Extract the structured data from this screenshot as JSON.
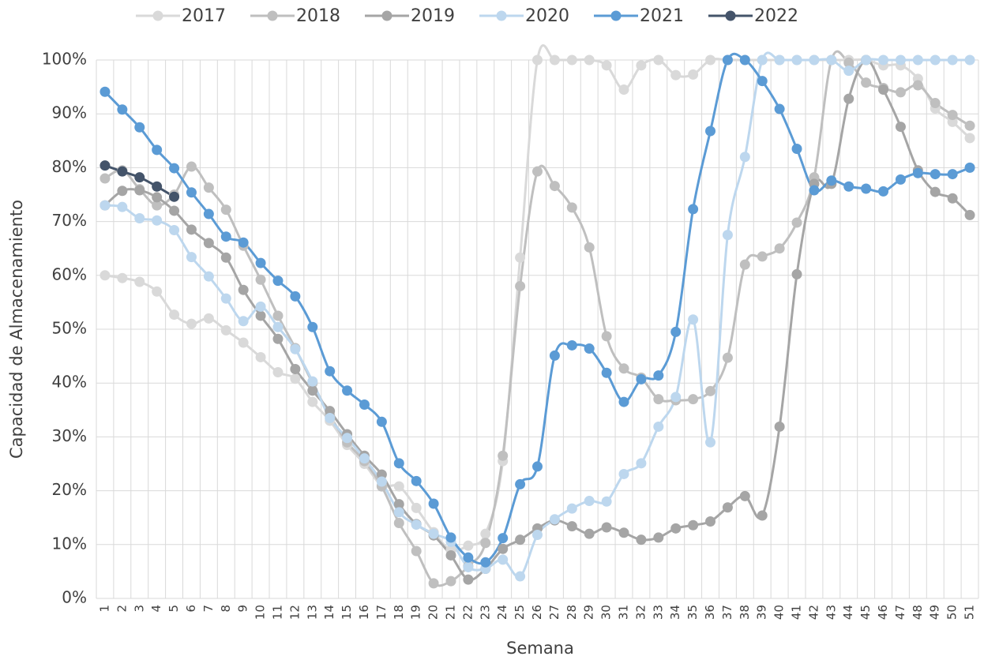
{
  "chart_data": {
    "type": "line",
    "x_label": "Semana",
    "y_label": "Capacidad de Almacenamiento",
    "categories": [
      "1",
      "2",
      "3",
      "4",
      "5",
      "6",
      "7",
      "8",
      "9",
      "10",
      "11",
      "12",
      "13",
      "14",
      "15",
      "16",
      "17",
      "18",
      "19",
      "20",
      "21",
      "22",
      "23",
      "24",
      "25",
      "26",
      "27",
      "28",
      "29",
      "30",
      "31",
      "32",
      "33",
      "34",
      "35",
      "36",
      "37",
      "38",
      "39",
      "40",
      "41",
      "42",
      "43",
      "44",
      "45",
      "46",
      "47",
      "48",
      "49",
      "50",
      "51"
    ],
    "ylim": [
      0,
      100
    ],
    "yticks": [
      {
        "value": 0,
        "label": "0%"
      },
      {
        "value": 10,
        "label": "10%"
      },
      {
        "value": 20,
        "label": "20%"
      },
      {
        "value": 30,
        "label": "30%"
      },
      {
        "value": 40,
        "label": "40%"
      },
      {
        "value": 50,
        "label": "50%"
      },
      {
        "value": 60,
        "label": "60%"
      },
      {
        "value": 70,
        "label": "70%"
      },
      {
        "value": 80,
        "label": "80%"
      },
      {
        "value": 90,
        "label": "90%"
      },
      {
        "value": 100,
        "label": "100%"
      }
    ],
    "grid": true,
    "legend": "top",
    "series": [
      {
        "name": "2017",
        "color": "#d9d9d9",
        "values": [
          60,
          59.5,
          58.8,
          57,
          52.7,
          51,
          52,
          49.8,
          47.5,
          44.8,
          42,
          40.8,
          36.5,
          33,
          28.5,
          25,
          21,
          20.8,
          16.8,
          12.3,
          9,
          9.8,
          12,
          25.5,
          63.3,
          100,
          100,
          100,
          100,
          99,
          94.5,
          99,
          100,
          97.2,
          97.3,
          100,
          100,
          100,
          100,
          100,
          100,
          100,
          100,
          100,
          100,
          99,
          99,
          96.5,
          91,
          88.5,
          85.5
        ]
      },
      {
        "name": "2018",
        "color": "#bfbfbf",
        "values": [
          78,
          79.5,
          76,
          73,
          75,
          80.2,
          76.3,
          72.2,
          65.5,
          59.2,
          52.5,
          46.5,
          40,
          34,
          29,
          25.5,
          20.8,
          14,
          8.8,
          2.8,
          3.2,
          6,
          10.3,
          26.5,
          58,
          79.3,
          76.6,
          72.6,
          65.2,
          48.7,
          42.7,
          41,
          37,
          36.8,
          37,
          38.5,
          44.7,
          62,
          63.5,
          65,
          69.8,
          78.2,
          100,
          99.5,
          95.8,
          94.8,
          94,
          95.3,
          92,
          89.8,
          87.8
        ]
      },
      {
        "name": "2019",
        "color": "#a5a5a5",
        "values": [
          73,
          75.7,
          75.8,
          74.5,
          72,
          68.5,
          66,
          63.3,
          57.3,
          52.5,
          48.2,
          42.6,
          38.6,
          34.8,
          30.5,
          26.5,
          23,
          17.5,
          13.8,
          11.7,
          8,
          3.5,
          5.5,
          9.2,
          10.9,
          13,
          14.5,
          13.4,
          12,
          13.2,
          12.2,
          10.9,
          11.3,
          13,
          13.6,
          14.3,
          16.9,
          19,
          15.4,
          31.9,
          60.2,
          77,
          77,
          92.8,
          100,
          94.5,
          87.6,
          79.5,
          75.5,
          74.3,
          71.2
        ]
      },
      {
        "name": "2020",
        "color": "#bdd7ee",
        "values": [
          73,
          72.7,
          70.6,
          70.2,
          68.4,
          63.4,
          59.8,
          55.7,
          51.5,
          54.2,
          50.4,
          46.3,
          40.3,
          33.5,
          29.8,
          26,
          21.7,
          16,
          13.7,
          12,
          10.5,
          5.8,
          5.5,
          7.2,
          4.1,
          11.8,
          14.7,
          16.7,
          18.1,
          18,
          23.1,
          25.1,
          31.9,
          37.4,
          51.8,
          29,
          67.5,
          82,
          100,
          100,
          100,
          100,
          100,
          98,
          100,
          100,
          100,
          100,
          100,
          100,
          100
        ]
      },
      {
        "name": "2021",
        "color": "#5b9bd5",
        "values": [
          94.1,
          90.8,
          87.5,
          83.3,
          79.9,
          75.4,
          71.4,
          67.2,
          66.1,
          62.3,
          59,
          56.1,
          50.4,
          42.2,
          38.6,
          36,
          32.8,
          25.1,
          21.8,
          17.6,
          11.3,
          7.6,
          6.7,
          11.2,
          21.2,
          24.5,
          45.1,
          47,
          46.4,
          41.9,
          36.5,
          40.7,
          41.4,
          49.5,
          72.3,
          86.8,
          100,
          100,
          96.1,
          90.9,
          83.5,
          75.8,
          77.6,
          76.5,
          76.1,
          75.6,
          77.8,
          79,
          78.8,
          78.8,
          80
        ]
      },
      {
        "name": "2022",
        "color": "#44546a",
        "values": [
          80.4,
          79.3,
          78.2,
          76.5,
          74.6,
          null,
          null,
          null,
          null,
          null,
          null,
          null,
          null,
          null,
          null,
          null,
          null,
          null,
          null,
          null,
          null,
          null,
          null,
          null,
          null,
          null,
          null,
          null,
          null,
          null,
          null,
          null,
          null,
          null,
          null,
          null,
          null,
          null,
          null,
          null,
          null,
          null,
          null,
          null,
          null,
          null,
          null,
          null,
          null,
          null,
          null
        ]
      }
    ]
  }
}
